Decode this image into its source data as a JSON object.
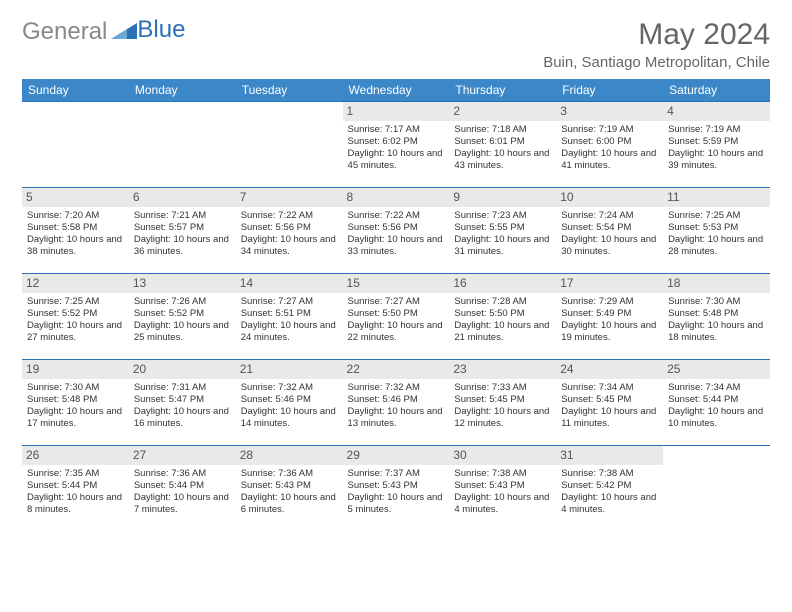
{
  "logo": {
    "part1": "General",
    "part2": "Blue"
  },
  "title": "May 2024",
  "location": "Buin, Santiago Metropolitan, Chile",
  "colors": {
    "header_bg": "#3b87c8",
    "header_text": "#ffffff",
    "border": "#2a71b8",
    "daynum_bg": "#e9e9e9",
    "text": "#333333",
    "brand_blue": "#2a71b8",
    "brand_gray": "#888888"
  },
  "weekdays": [
    "Sunday",
    "Monday",
    "Tuesday",
    "Wednesday",
    "Thursday",
    "Friday",
    "Saturday"
  ],
  "weeks": [
    [
      {
        "day": "",
        "sunrise": "",
        "sunset": "",
        "daylight": ""
      },
      {
        "day": "",
        "sunrise": "",
        "sunset": "",
        "daylight": ""
      },
      {
        "day": "",
        "sunrise": "",
        "sunset": "",
        "daylight": ""
      },
      {
        "day": "1",
        "sunrise": "Sunrise: 7:17 AM",
        "sunset": "Sunset: 6:02 PM",
        "daylight": "Daylight: 10 hours and 45 minutes."
      },
      {
        "day": "2",
        "sunrise": "Sunrise: 7:18 AM",
        "sunset": "Sunset: 6:01 PM",
        "daylight": "Daylight: 10 hours and 43 minutes."
      },
      {
        "day": "3",
        "sunrise": "Sunrise: 7:19 AM",
        "sunset": "Sunset: 6:00 PM",
        "daylight": "Daylight: 10 hours and 41 minutes."
      },
      {
        "day": "4",
        "sunrise": "Sunrise: 7:19 AM",
        "sunset": "Sunset: 5:59 PM",
        "daylight": "Daylight: 10 hours and 39 minutes."
      }
    ],
    [
      {
        "day": "5",
        "sunrise": "Sunrise: 7:20 AM",
        "sunset": "Sunset: 5:58 PM",
        "daylight": "Daylight: 10 hours and 38 minutes."
      },
      {
        "day": "6",
        "sunrise": "Sunrise: 7:21 AM",
        "sunset": "Sunset: 5:57 PM",
        "daylight": "Daylight: 10 hours and 36 minutes."
      },
      {
        "day": "7",
        "sunrise": "Sunrise: 7:22 AM",
        "sunset": "Sunset: 5:56 PM",
        "daylight": "Daylight: 10 hours and 34 minutes."
      },
      {
        "day": "8",
        "sunrise": "Sunrise: 7:22 AM",
        "sunset": "Sunset: 5:56 PM",
        "daylight": "Daylight: 10 hours and 33 minutes."
      },
      {
        "day": "9",
        "sunrise": "Sunrise: 7:23 AM",
        "sunset": "Sunset: 5:55 PM",
        "daylight": "Daylight: 10 hours and 31 minutes."
      },
      {
        "day": "10",
        "sunrise": "Sunrise: 7:24 AM",
        "sunset": "Sunset: 5:54 PM",
        "daylight": "Daylight: 10 hours and 30 minutes."
      },
      {
        "day": "11",
        "sunrise": "Sunrise: 7:25 AM",
        "sunset": "Sunset: 5:53 PM",
        "daylight": "Daylight: 10 hours and 28 minutes."
      }
    ],
    [
      {
        "day": "12",
        "sunrise": "Sunrise: 7:25 AM",
        "sunset": "Sunset: 5:52 PM",
        "daylight": "Daylight: 10 hours and 27 minutes."
      },
      {
        "day": "13",
        "sunrise": "Sunrise: 7:26 AM",
        "sunset": "Sunset: 5:52 PM",
        "daylight": "Daylight: 10 hours and 25 minutes."
      },
      {
        "day": "14",
        "sunrise": "Sunrise: 7:27 AM",
        "sunset": "Sunset: 5:51 PM",
        "daylight": "Daylight: 10 hours and 24 minutes."
      },
      {
        "day": "15",
        "sunrise": "Sunrise: 7:27 AM",
        "sunset": "Sunset: 5:50 PM",
        "daylight": "Daylight: 10 hours and 22 minutes."
      },
      {
        "day": "16",
        "sunrise": "Sunrise: 7:28 AM",
        "sunset": "Sunset: 5:50 PM",
        "daylight": "Daylight: 10 hours and 21 minutes."
      },
      {
        "day": "17",
        "sunrise": "Sunrise: 7:29 AM",
        "sunset": "Sunset: 5:49 PM",
        "daylight": "Daylight: 10 hours and 19 minutes."
      },
      {
        "day": "18",
        "sunrise": "Sunrise: 7:30 AM",
        "sunset": "Sunset: 5:48 PM",
        "daylight": "Daylight: 10 hours and 18 minutes."
      }
    ],
    [
      {
        "day": "19",
        "sunrise": "Sunrise: 7:30 AM",
        "sunset": "Sunset: 5:48 PM",
        "daylight": "Daylight: 10 hours and 17 minutes."
      },
      {
        "day": "20",
        "sunrise": "Sunrise: 7:31 AM",
        "sunset": "Sunset: 5:47 PM",
        "daylight": "Daylight: 10 hours and 16 minutes."
      },
      {
        "day": "21",
        "sunrise": "Sunrise: 7:32 AM",
        "sunset": "Sunset: 5:46 PM",
        "daylight": "Daylight: 10 hours and 14 minutes."
      },
      {
        "day": "22",
        "sunrise": "Sunrise: 7:32 AM",
        "sunset": "Sunset: 5:46 PM",
        "daylight": "Daylight: 10 hours and 13 minutes."
      },
      {
        "day": "23",
        "sunrise": "Sunrise: 7:33 AM",
        "sunset": "Sunset: 5:45 PM",
        "daylight": "Daylight: 10 hours and 12 minutes."
      },
      {
        "day": "24",
        "sunrise": "Sunrise: 7:34 AM",
        "sunset": "Sunset: 5:45 PM",
        "daylight": "Daylight: 10 hours and 11 minutes."
      },
      {
        "day": "25",
        "sunrise": "Sunrise: 7:34 AM",
        "sunset": "Sunset: 5:44 PM",
        "daylight": "Daylight: 10 hours and 10 minutes."
      }
    ],
    [
      {
        "day": "26",
        "sunrise": "Sunrise: 7:35 AM",
        "sunset": "Sunset: 5:44 PM",
        "daylight": "Daylight: 10 hours and 8 minutes."
      },
      {
        "day": "27",
        "sunrise": "Sunrise: 7:36 AM",
        "sunset": "Sunset: 5:44 PM",
        "daylight": "Daylight: 10 hours and 7 minutes."
      },
      {
        "day": "28",
        "sunrise": "Sunrise: 7:36 AM",
        "sunset": "Sunset: 5:43 PM",
        "daylight": "Daylight: 10 hours and 6 minutes."
      },
      {
        "day": "29",
        "sunrise": "Sunrise: 7:37 AM",
        "sunset": "Sunset: 5:43 PM",
        "daylight": "Daylight: 10 hours and 5 minutes."
      },
      {
        "day": "30",
        "sunrise": "Sunrise: 7:38 AM",
        "sunset": "Sunset: 5:43 PM",
        "daylight": "Daylight: 10 hours and 4 minutes."
      },
      {
        "day": "31",
        "sunrise": "Sunrise: 7:38 AM",
        "sunset": "Sunset: 5:42 PM",
        "daylight": "Daylight: 10 hours and 4 minutes."
      },
      {
        "day": "",
        "sunrise": "",
        "sunset": "",
        "daylight": ""
      }
    ]
  ]
}
